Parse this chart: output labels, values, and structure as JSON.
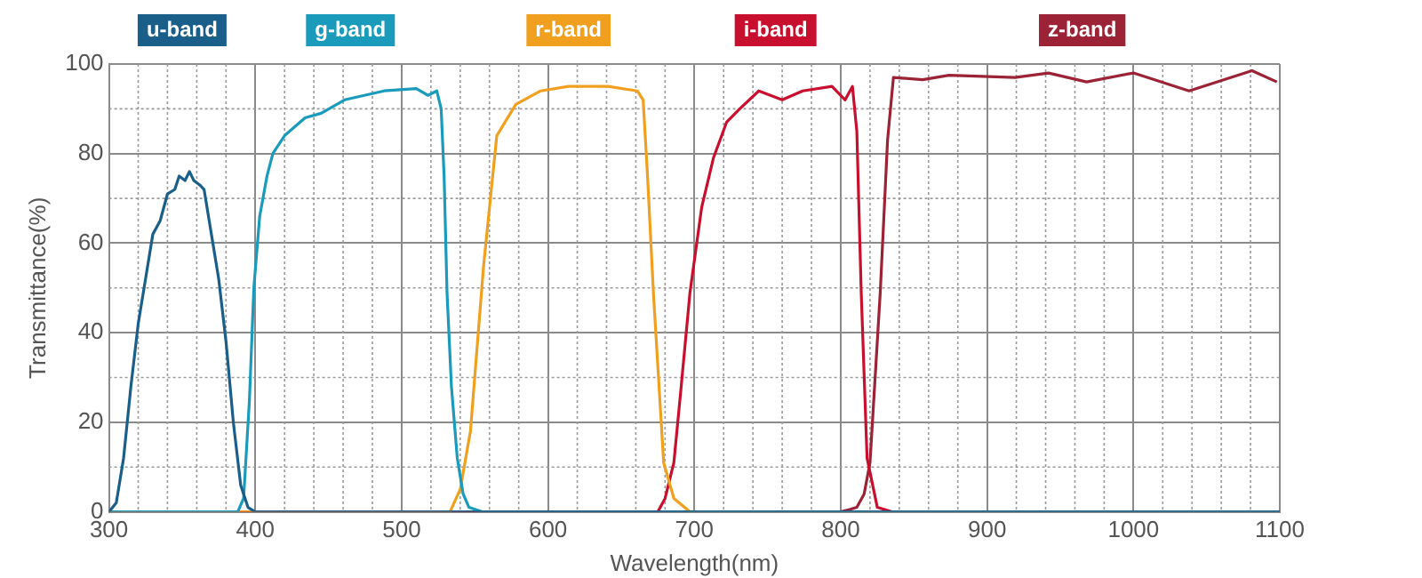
{
  "chart_data": {
    "type": "line",
    "xlabel": "Wavelength(nm)",
    "ylabel": "Transmittance(%)",
    "xlim": [
      300,
      1100
    ],
    "ylim": [
      0,
      100
    ],
    "xticks": [
      300,
      400,
      500,
      600,
      700,
      800,
      900,
      1000,
      1100
    ],
    "yticks": [
      0,
      20,
      40,
      60,
      80,
      100
    ],
    "grid": true,
    "legend": "top",
    "marker": "none",
    "line_style": "solid",
    "series": [
      {
        "name": "u-band",
        "color": "#1a5f8a",
        "x": [
          300,
          305,
          310,
          315,
          320,
          325,
          330,
          335,
          340,
          345,
          348,
          352,
          355,
          358,
          362,
          365,
          370,
          375,
          380,
          385,
          390,
          395,
          400,
          1100
        ],
        "values": [
          0,
          2,
          12,
          28,
          42,
          52,
          62,
          65,
          71,
          72,
          75,
          74,
          76,
          74,
          73,
          72,
          62,
          52,
          38,
          20,
          6,
          1,
          0,
          0
        ]
      },
      {
        "name": "g-band",
        "color": "#1b9bbb",
        "x": [
          300,
          388,
          392,
          396,
          399,
          403,
          408,
          412,
          420,
          434,
          445,
          461,
          488,
          510,
          518,
          524,
          527,
          529,
          531,
          534,
          538,
          542,
          546,
          555,
          1100
        ],
        "values": [
          0,
          0,
          3,
          25,
          50,
          66,
          75,
          80,
          84,
          88,
          89,
          92,
          94,
          94.5,
          93,
          94,
          90,
          75,
          49,
          28,
          12,
          4,
          1,
          0,
          0
        ]
      },
      {
        "name": "r-band",
        "color": "#f0a01e",
        "x": [
          300,
          533,
          540,
          547,
          556,
          565,
          578,
          595,
          614,
          641,
          661,
          665,
          668,
          672,
          679,
          686,
          697,
          1100
        ],
        "values": [
          0,
          0,
          5,
          18,
          55,
          84,
          91,
          94,
          95,
          95,
          94,
          92,
          75,
          49,
          11,
          3,
          0,
          0
        ]
      },
      {
        "name": "i-band",
        "color": "#c8102e",
        "x": [
          300,
          675,
          680,
          686,
          691,
          697,
          705,
          713,
          722,
          731,
          744,
          760,
          774,
          794,
          803,
          808,
          811,
          814,
          818,
          825,
          835,
          1100
        ],
        "values": [
          0,
          0,
          3,
          11,
          28,
          49,
          68,
          79,
          87,
          90,
          94,
          92,
          94,
          95,
          92,
          95,
          85,
          49,
          12,
          1,
          0,
          0
        ]
      },
      {
        "name": "z-band",
        "color": "#9b2335",
        "x": [
          300,
          800,
          806,
          811,
          816,
          820,
          827,
          832,
          836,
          856,
          874,
          919,
          942,
          968,
          1000,
          1038,
          1081,
          1098
        ],
        "values": [
          0,
          0,
          0.5,
          1,
          4,
          11,
          49,
          83,
          97,
          96.5,
          97.5,
          97,
          98,
          96,
          98,
          94,
          98.5,
          96
        ]
      }
    ]
  }
}
